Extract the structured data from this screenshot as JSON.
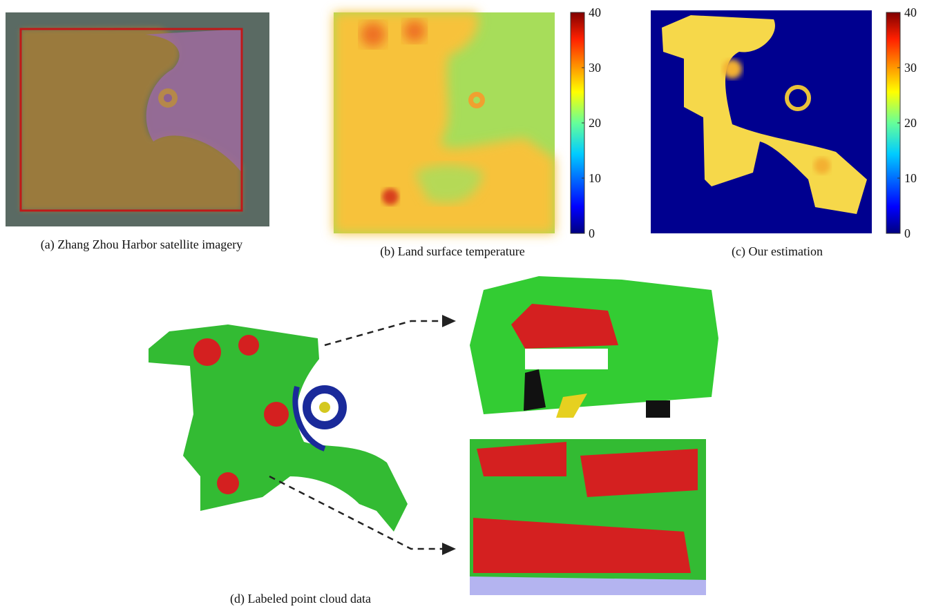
{
  "panels": [
    {
      "caption": "(a) Zhang Zhou Harbor satellite imagery"
    },
    {
      "caption": "(b) Land surface temperature",
      "colorbar_ticks": [
        0,
        10,
        20,
        30,
        40
      ]
    },
    {
      "caption": "(c) Our estimation",
      "colorbar_ticks": [
        0,
        10,
        20,
        30,
        40
      ]
    },
    {
      "caption": "(d) Labeled point cloud data"
    }
  ]
}
